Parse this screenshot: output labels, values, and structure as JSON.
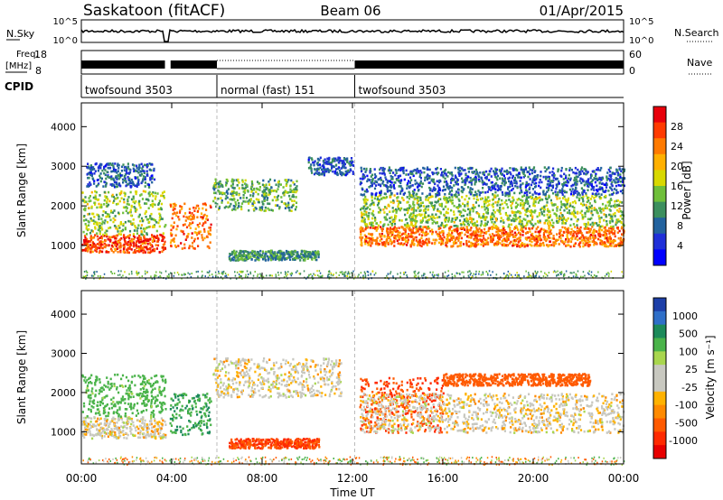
{
  "header": {
    "station": "Saskatoon (fitACF)",
    "beam": "Beam 06",
    "date": "01/Apr/2015"
  },
  "top_panels": {
    "nsky_label": "N.Sky",
    "nsky_ticks": [
      "10^5",
      "10^0"
    ],
    "nsearch_label": "N.Search",
    "nsearch_ticks": [
      "10^5",
      "10^0"
    ],
    "freq_label": "Freq.",
    "freq_unit": "[MHz]",
    "freq_ticks": [
      "18",
      "8"
    ],
    "nave_label": "Nave",
    "nave_ticks": [
      "60",
      "0"
    ],
    "cpid_label": "CPID"
  },
  "cpid_segments": [
    {
      "label": "twofsound 3503",
      "start": 0,
      "end": 6
    },
    {
      "label": "normal (fast) 151",
      "start": 6,
      "end": 12.1
    },
    {
      "label": "twofsound 3503",
      "start": 12.1,
      "end": 24
    }
  ],
  "x_axis": {
    "label": "Time UT",
    "ticks": [
      "00:00",
      "04:00",
      "08:00",
      "12:00",
      "16:00",
      "20:00",
      "00:00"
    ]
  },
  "power_colorbar": {
    "title": "Power [dB]",
    "ticks": [
      "28",
      "24",
      "20",
      "16",
      "12",
      "8",
      "4"
    ],
    "colors": [
      "#e8000b",
      "#ff3a00",
      "#ff7a00",
      "#ffb000",
      "#d8d800",
      "#6fbf3a",
      "#3c8f5e",
      "#22629e",
      "#1f2fd8",
      "#0000ff"
    ]
  },
  "velocity_colorbar": {
    "title": "Velocity [m s⁻¹]",
    "ticks": [
      "1000",
      "500",
      "100",
      "25",
      "-25",
      "-100",
      "-500",
      "-1000"
    ],
    "colors": [
      "#1d3fa8",
      "#2f6fc8",
      "#1c8a5a",
      "#4ab34a",
      "#a9d64e",
      "#c8c8c0",
      "#c8c8c0",
      "#ffb200",
      "#ff8a00",
      "#ff5a00",
      "#ff2a00",
      "#e80000"
    ]
  },
  "chart_data": [
    {
      "type": "heatmap",
      "title": "Power",
      "ylabel": "Slant Range [km]",
      "yticks": [
        "1000",
        "2000",
        "3000",
        "4000"
      ],
      "ylim": [
        180,
        4600
      ],
      "xlabel": "Time UT",
      "xlim": [
        0,
        24
      ],
      "colorbar_label": "Power [dB]",
      "regions": [
        {
          "t0": 0,
          "t1": 3.7,
          "r0": 850,
          "r1": 1300,
          "value": 26
        },
        {
          "t0": 0,
          "t1": 3.7,
          "r0": 1300,
          "r1": 2400,
          "value": 14
        },
        {
          "t0": 0.2,
          "t1": 3.2,
          "r0": 2500,
          "r1": 3100,
          "value": 6
        },
        {
          "t0": 3.9,
          "t1": 5.7,
          "r0": 950,
          "r1": 2100,
          "value": 24
        },
        {
          "t0": 5.8,
          "t1": 9.5,
          "r0": 1900,
          "r1": 2700,
          "value": 12
        },
        {
          "t0": 6.5,
          "t1": 10.5,
          "r0": 650,
          "r1": 900,
          "value": 10
        },
        {
          "t0": 10.0,
          "t1": 12.0,
          "r0": 2800,
          "r1": 3250,
          "value": 6
        },
        {
          "t0": 12.3,
          "t1": 24,
          "r0": 1000,
          "r1": 1500,
          "value": 24
        },
        {
          "t0": 12.3,
          "t1": 24,
          "r0": 1500,
          "r1": 2300,
          "value": 14
        },
        {
          "t0": 12.3,
          "t1": 24,
          "r0": 2300,
          "r1": 3000,
          "value": 6
        }
      ]
    },
    {
      "type": "heatmap",
      "title": "Velocity",
      "ylabel": "Slant Range [km]",
      "yticks": [
        "1000",
        "2000",
        "3000",
        "4000"
      ],
      "ylim": [
        180,
        4600
      ],
      "xlabel": "Time UT",
      "xlim": [
        0,
        24
      ],
      "colorbar_label": "Velocity [m s-1]",
      "regions": [
        {
          "t0": 0,
          "t1": 3.7,
          "r0": 850,
          "r1": 1400,
          "value": 0
        },
        {
          "t0": 0,
          "t1": 3.7,
          "r0": 1400,
          "r1": 2500,
          "value": 150
        },
        {
          "t0": 3.9,
          "t1": 5.7,
          "r0": 950,
          "r1": 2000,
          "value": 300
        },
        {
          "t0": 5.8,
          "t1": 11.5,
          "r0": 1900,
          "r1": 2900,
          "value": 0
        },
        {
          "t0": 6.5,
          "t1": 10.5,
          "r0": 600,
          "r1": 850,
          "value": -300
        },
        {
          "t0": 12.3,
          "t1": 16,
          "r0": 1000,
          "r1": 2400,
          "value": -300
        },
        {
          "t0": 12.3,
          "t1": 24,
          "r0": 1000,
          "r1": 2000,
          "value": 0
        },
        {
          "t0": 16,
          "t1": 22.5,
          "r0": 2200,
          "r1": 2500,
          "value": -200
        }
      ]
    }
  ]
}
